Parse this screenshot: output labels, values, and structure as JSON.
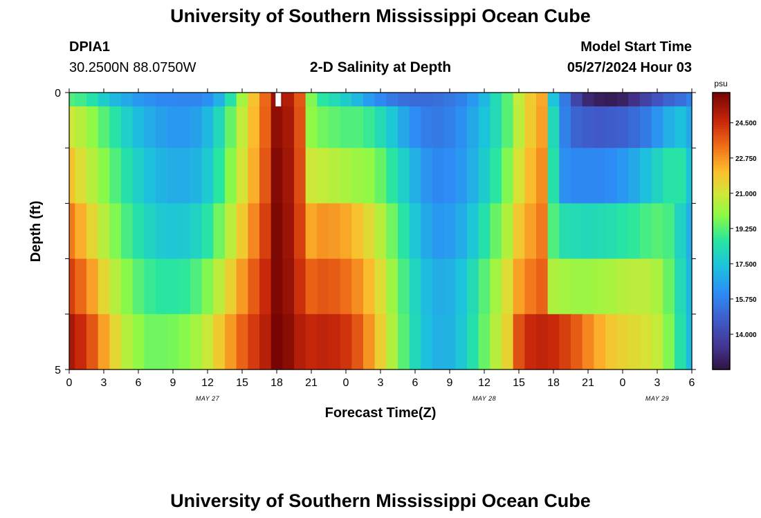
{
  "page": {
    "title": "University of Southern Mississippi Ocean Cube",
    "title_bottom": "University of Southern Mississippi Ocean Cube",
    "station_id": "DPIA1",
    "station_coords": "30.2500N  88.0750W",
    "plot_subtitle": "2-D Salinity at Depth",
    "model_start_label": "Model Start Time",
    "model_start_value": "05/27/2024 Hour 03"
  },
  "chart_data": {
    "type": "heatmap",
    "title": "2-D Salinity at Depth",
    "xlabel": "Forecast Time(Z)",
    "ylabel": "Depth (ft)",
    "x_tick_labels": [
      "0",
      "3",
      "6",
      "9",
      "12",
      "15",
      "18",
      "21",
      "0",
      "3",
      "6",
      "9",
      "12",
      "15",
      "18",
      "21",
      "0",
      "3",
      "6"
    ],
    "day_labels": [
      {
        "label": "MAY 27",
        "hour": 12
      },
      {
        "label": "MAY 28",
        "hour": 36
      },
      {
        "label": "MAY 29",
        "hour": 51
      }
    ],
    "y_tick_labels": [
      "0",
      "5"
    ],
    "x_range_hours": [
      0,
      54
    ],
    "depth_range_ft": [
      0,
      5
    ],
    "hours": [
      0,
      1,
      2,
      3,
      4,
      5,
      6,
      7,
      8,
      9,
      10,
      11,
      12,
      13,
      14,
      15,
      16,
      17,
      18,
      19,
      20,
      21,
      22,
      23,
      24,
      25,
      26,
      27,
      28,
      29,
      30,
      31,
      32,
      33,
      34,
      35,
      36,
      37,
      38,
      39,
      40,
      41,
      42,
      43,
      44,
      45,
      46,
      47,
      48,
      49,
      50,
      51,
      52,
      53,
      54
    ],
    "depth_layers_ft": [
      0,
      0.5,
      1.5,
      2.5,
      3.5,
      4.5
    ],
    "values": [
      [
        19.2,
        19.0,
        18.5,
        17.8,
        17.2,
        16.8,
        16.4,
        16.2,
        16.0,
        16.0,
        15.9,
        15.9,
        16.2,
        17.0,
        18.5,
        20.3,
        22.0,
        23.5,
        25.5,
        25.0,
        23.8,
        19.8,
        18.7,
        18.3,
        17.8,
        17.2,
        16.5,
        16.0,
        15.6,
        15.3,
        15.2,
        15.2,
        15.3,
        15.5,
        15.8,
        16.4,
        17.2,
        18.3,
        19.3,
        20.8,
        21.8,
        22.5,
        17.5,
        15.6,
        14.0,
        13.0,
        12.7,
        12.6,
        12.8,
        13.3,
        13.9,
        14.5,
        15.0,
        15.3,
        15.8
      ],
      [
        21.0,
        20.6,
        20.0,
        19.3,
        18.6,
        17.9,
        17.3,
        16.9,
        16.6,
        16.4,
        16.4,
        16.6,
        17.2,
        18.2,
        19.5,
        20.8,
        22.2,
        23.6,
        25.6,
        25.2,
        23.9,
        20.0,
        19.6,
        19.4,
        19.2,
        19.2,
        18.9,
        18.3,
        17.6,
        16.8,
        16.1,
        15.7,
        15.6,
        15.8,
        16.2,
        16.8,
        17.5,
        18.3,
        19.3,
        20.7,
        21.8,
        22.6,
        18.2,
        15.8,
        15.0,
        14.8,
        14.7,
        14.8,
        14.9,
        15.2,
        15.6,
        16.3,
        17.0,
        17.4,
        16.8
      ],
      [
        22.0,
        21.3,
        20.6,
        19.9,
        19.2,
        18.5,
        17.9,
        17.4,
        17.1,
        16.9,
        16.9,
        17.1,
        17.7,
        18.7,
        19.9,
        21.1,
        22.4,
        23.8,
        25.8,
        25.3,
        24.0,
        21.0,
        20.8,
        20.6,
        20.4,
        20.2,
        20.0,
        19.5,
        18.7,
        17.9,
        17.0,
        16.3,
        16.0,
        16.1,
        16.4,
        17.0,
        17.8,
        18.7,
        19.8,
        21.2,
        22.2,
        22.9,
        18.5,
        16.2,
        16.0,
        16.0,
        16.0,
        16.1,
        16.4,
        16.8,
        17.4,
        18.0,
        18.6,
        18.6,
        17.5
      ],
      [
        23.2,
        22.4,
        21.5,
        20.6,
        19.8,
        19.1,
        18.5,
        18.0,
        17.7,
        17.6,
        17.7,
        18.0,
        18.6,
        19.6,
        20.7,
        21.8,
        23.0,
        24.2,
        25.9,
        25.4,
        24.2,
        22.5,
        22.8,
        22.7,
        22.5,
        22.0,
        21.4,
        20.6,
        19.6,
        18.6,
        17.6,
        16.8,
        16.4,
        16.5,
        16.9,
        17.6,
        18.5,
        19.5,
        20.5,
        21.9,
        22.6,
        23.2,
        19.2,
        18.4,
        18.3,
        18.2,
        18.3,
        18.4,
        18.6,
        18.8,
        19.1,
        19.3,
        19.1,
        18.0,
        17.0
      ],
      [
        24.2,
        23.5,
        22.6,
        21.5,
        20.6,
        19.9,
        19.3,
        18.9,
        18.7,
        18.7,
        18.8,
        19.2,
        19.8,
        20.7,
        21.7,
        22.7,
        23.7,
        24.6,
        25.9,
        25.5,
        24.5,
        23.6,
        23.8,
        23.7,
        23.4,
        22.9,
        22.2,
        21.3,
        20.2,
        19.1,
        18.1,
        17.3,
        16.9,
        17.0,
        17.5,
        18.3,
        19.3,
        20.3,
        21.3,
        22.6,
        23.2,
        23.6,
        20.5,
        20.3,
        20.2,
        20.2,
        20.3,
        20.4,
        20.6,
        20.7,
        20.7,
        20.4,
        19.5,
        18.3,
        17.2
      ],
      [
        25.2,
        24.6,
        23.8,
        22.6,
        21.5,
        20.6,
        20.0,
        19.6,
        19.6,
        19.7,
        19.9,
        20.3,
        20.9,
        21.8,
        22.7,
        23.6,
        24.3,
        24.9,
        26.0,
        25.7,
        25.0,
        24.7,
        24.8,
        24.7,
        24.4,
        23.8,
        22.8,
        21.7,
        20.5,
        19.3,
        18.2,
        17.4,
        17.0,
        17.1,
        17.6,
        18.5,
        19.5,
        20.6,
        21.6,
        23.9,
        24.6,
        24.8,
        24.6,
        24.2,
        23.7,
        23.0,
        22.4,
        21.9,
        21.6,
        21.4,
        21.2,
        20.8,
        19.8,
        18.5,
        17.3
      ]
    ],
    "colorbar": {
      "unit": "psu",
      "tick_labels": [
        "24.500",
        "22.750",
        "21.000",
        "19.250",
        "17.500",
        "15.750",
        "14.000"
      ],
      "range": [
        12.25,
        26.0
      ]
    }
  }
}
